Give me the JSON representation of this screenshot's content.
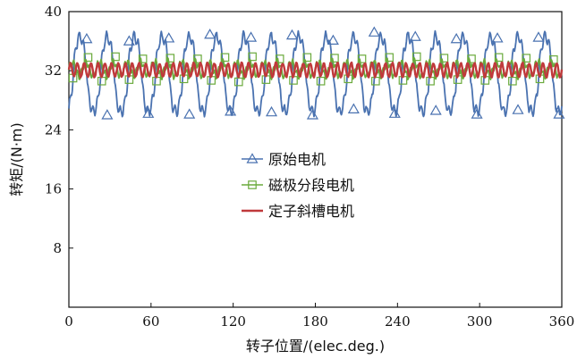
{
  "chart_data": {
    "type": "line",
    "xlabel": "转子位置/(elec.deg.)",
    "ylabel": "转矩/(N·m)",
    "xlim": [
      0,
      360
    ],
    "ylim": [
      0,
      40
    ],
    "xticks": [
      0,
      60,
      120,
      180,
      240,
      300,
      360
    ],
    "yticks": [
      8,
      16,
      24,
      32,
      40
    ],
    "grid": false,
    "legend_position": "center",
    "series": [
      {
        "name": "原始电机",
        "color": "#4a72b0",
        "marker": "triangle",
        "ripple_period_deg": 20,
        "mean": 31.4,
        "peak_max": 37,
        "peak_min": 26,
        "marker_points": [
          {
            "x": 13,
            "y": 36.3
          },
          {
            "x": 28,
            "y": 26.0
          },
          {
            "x": 44,
            "y": 36.0
          },
          {
            "x": 58,
            "y": 26.2
          },
          {
            "x": 73,
            "y": 36.4
          },
          {
            "x": 88,
            "y": 26.1
          },
          {
            "x": 103,
            "y": 36.9
          },
          {
            "x": 118,
            "y": 26.5
          },
          {
            "x": 133,
            "y": 36.5
          },
          {
            "x": 148,
            "y": 26.4
          },
          {
            "x": 163,
            "y": 36.8
          },
          {
            "x": 178,
            "y": 26.0
          },
          {
            "x": 193,
            "y": 36.1
          },
          {
            "x": 208,
            "y": 26.8
          },
          {
            "x": 223,
            "y": 37.2
          },
          {
            "x": 238,
            "y": 26.2
          },
          {
            "x": 253,
            "y": 36.6
          },
          {
            "x": 268,
            "y": 26.6
          },
          {
            "x": 283,
            "y": 36.3
          },
          {
            "x": 298,
            "y": 26.1
          },
          {
            "x": 313,
            "y": 36.4
          },
          {
            "x": 328,
            "y": 26.7
          },
          {
            "x": 343,
            "y": 36.5
          },
          {
            "x": 358,
            "y": 26.1
          }
        ]
      },
      {
        "name": "磁极分段电机",
        "color": "#6aaa3c",
        "marker": "square",
        "ripple_period_deg": 20,
        "mean": 32.2,
        "peak_max": 34,
        "peak_min": 30.5,
        "marker_points": [
          {
            "x": 3,
            "y": 31.0
          },
          {
            "x": 14,
            "y": 33.8
          },
          {
            "x": 24,
            "y": 30.6
          },
          {
            "x": 34,
            "y": 33.9
          },
          {
            "x": 44,
            "y": 30.8
          },
          {
            "x": 54,
            "y": 33.6
          },
          {
            "x": 64,
            "y": 30.6
          },
          {
            "x": 74,
            "y": 33.7
          },
          {
            "x": 84,
            "y": 30.9
          },
          {
            "x": 94,
            "y": 33.6
          },
          {
            "x": 104,
            "y": 30.7
          },
          {
            "x": 114,
            "y": 33.8
          },
          {
            "x": 124,
            "y": 30.5
          },
          {
            "x": 134,
            "y": 33.9
          },
          {
            "x": 144,
            "y": 30.8
          },
          {
            "x": 154,
            "y": 33.6
          },
          {
            "x": 164,
            "y": 30.7
          },
          {
            "x": 174,
            "y": 33.8
          },
          {
            "x": 184,
            "y": 30.6
          },
          {
            "x": 194,
            "y": 33.7
          },
          {
            "x": 204,
            "y": 30.9
          },
          {
            "x": 214,
            "y": 33.6
          },
          {
            "x": 224,
            "y": 30.6
          },
          {
            "x": 234,
            "y": 33.8
          },
          {
            "x": 244,
            "y": 30.7
          },
          {
            "x": 254,
            "y": 33.9
          },
          {
            "x": 264,
            "y": 30.6
          },
          {
            "x": 274,
            "y": 33.7
          },
          {
            "x": 284,
            "y": 30.8
          },
          {
            "x": 294,
            "y": 33.6
          },
          {
            "x": 304,
            "y": 30.7
          },
          {
            "x": 314,
            "y": 33.8
          },
          {
            "x": 324,
            "y": 30.6
          },
          {
            "x": 334,
            "y": 33.7
          },
          {
            "x": 344,
            "y": 30.9
          },
          {
            "x": 354,
            "y": 33.5
          }
        ]
      },
      {
        "name": "定子斜槽电机",
        "color": "#c0393b",
        "marker": "none",
        "ripple_period_deg": 5,
        "mean": 32.1,
        "peak_max": 33.2,
        "peak_min": 31.0
      }
    ]
  }
}
